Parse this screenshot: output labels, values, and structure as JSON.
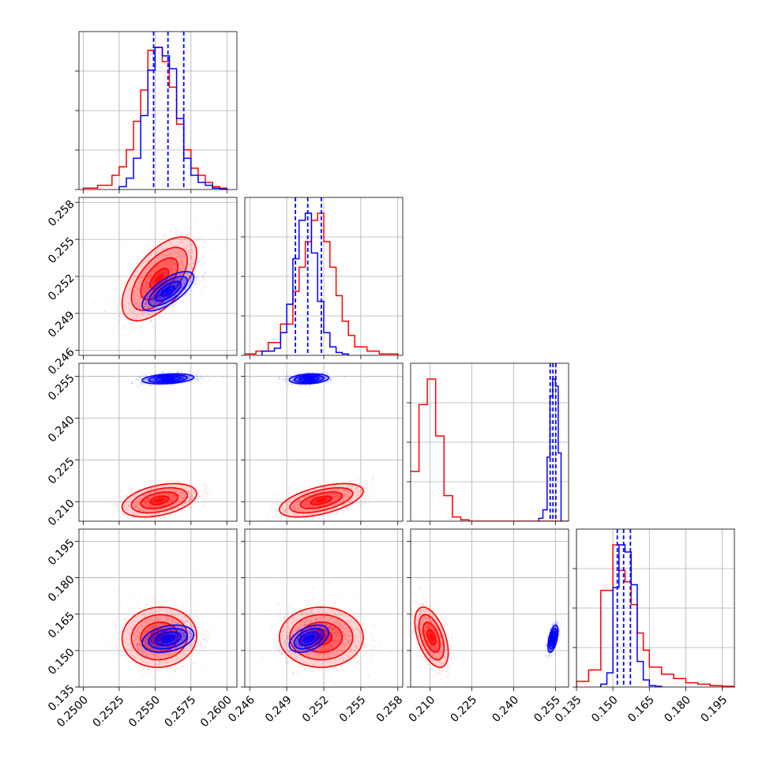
{
  "chart_data": {
    "type": "corner",
    "grid": true,
    "n_params": 4,
    "colors": {
      "red_sample": "#ff0000",
      "blue_sample": "#0000ff",
      "grid": "#b0b0b0"
    },
    "series": [
      {
        "color": "#ff0000",
        "mean": [
          0.2553,
          0.2518,
          0.2105,
          0.1555
        ],
        "std": [
          0.0013,
          0.0017,
          0.003,
          0.0062
        ],
        "corr": [
          [
            1,
            0.6,
            0.4,
            0.05
          ],
          [
            0.6,
            1,
            0.55,
            0.0
          ],
          [
            0.4,
            0.55,
            1,
            -0.5
          ],
          [
            0.05,
            0.0,
            -0.5,
            1
          ]
        ],
        "hist": [
          {
            "bins": [
              0.25,
              0.251,
              0.252,
              0.2525,
              0.253,
              0.2535,
              0.254,
              0.2545,
              0.255,
              0.2555,
              0.256,
              0.2565,
              0.257,
              0.2575,
              0.258,
              0.2585,
              0.259,
              0.2595,
              0.26
            ],
            "counts": [
              0.01,
              0.03,
              0.1,
              0.16,
              0.28,
              0.48,
              0.7,
              0.98,
              1.0,
              0.9,
              0.72,
              0.46,
              0.28,
              0.15,
              0.1,
              0.05,
              0.02,
              0.01
            ]
          },
          {
            "bins": [
              0.2455,
              0.2465,
              0.2475,
              0.2485,
              0.2495,
              0.25,
              0.2505,
              0.251,
              0.2515,
              0.252,
              0.2525,
              0.253,
              0.2535,
              0.254,
              0.2545,
              0.2555,
              0.2565,
              0.258
            ],
            "counts": [
              0.01,
              0.03,
              0.09,
              0.22,
              0.45,
              0.62,
              0.8,
              0.95,
              1.0,
              0.8,
              0.62,
              0.42,
              0.24,
              0.14,
              0.06,
              0.03,
              0.01
            ]
          },
          {
            "bins": [
              0.2025,
              0.206,
              0.209,
              0.212,
              0.215,
              0.218,
              0.221,
              0.224,
              0.25,
              0.252,
              0.254,
              0.256,
              0.258,
              0.26
            ],
            "counts": [
              0.35,
              0.82,
              1.0,
              0.6,
              0.18,
              0.03,
              0.01,
              0.0,
              0.0,
              0.0,
              0.0,
              0.0,
              0.0
            ]
          },
          {
            "bins": [
              0.135,
              0.14,
              0.145,
              0.15,
              0.1525,
              0.155,
              0.1575,
              0.16,
              0.1625,
              0.165,
              0.17,
              0.175,
              0.18,
              0.185,
              0.19,
              0.195,
              0.2
            ],
            "counts": [
              0.04,
              0.12,
              0.68,
              1.0,
              0.82,
              0.74,
              0.58,
              0.38,
              0.26,
              0.14,
              0.09,
              0.06,
              0.03,
              0.02,
              0.01,
              0.005
            ]
          }
        ]
      },
      {
        "color": "#0000ff",
        "mean": [
          0.2559,
          0.2508,
          0.2541,
          0.1549
        ],
        "std": [
          0.0009,
          0.0008,
          0.0009,
          0.0028
        ],
        "corr": [
          [
            1,
            0.7,
            0.3,
            0.3
          ],
          [
            0.7,
            1,
            0.2,
            0.45
          ],
          [
            0.3,
            0.2,
            1,
            0.55
          ],
          [
            0.3,
            0.45,
            0.55,
            1
          ]
        ],
        "quantile_lines": [
          [
            0.2549,
            0.2559,
            0.257
          ],
          [
            0.2497,
            0.2507,
            0.2518
          ],
          [
            0.2531,
            0.2541,
            0.2551
          ],
          [
            0.1518,
            0.1544,
            0.1572
          ]
        ],
        "hist": [
          {
            "bins": [
              0.2525,
              0.253,
              0.2535,
              0.254,
              0.2545,
              0.255,
              0.2555,
              0.256,
              0.2565,
              0.257,
              0.2575,
              0.258,
              0.2585,
              0.259,
              0.2595,
              0.26
            ],
            "counts": [
              0.02,
              0.08,
              0.22,
              0.52,
              0.84,
              1.0,
              0.94,
              0.85,
              0.5,
              0.22,
              0.1,
              0.05,
              0.03,
              0.01,
              0.005
            ]
          },
          {
            "bins": [
              0.247,
              0.248,
              0.2485,
              0.249,
              0.2495,
              0.25,
              0.2505,
              0.251,
              0.2515,
              0.252,
              0.2525,
              0.253,
              0.2535,
              0.254
            ],
            "counts": [
              0.03,
              0.05,
              0.16,
              0.36,
              0.68,
              0.95,
              1.0,
              0.72,
              0.38,
              0.16,
              0.06,
              0.02,
              0.01
            ]
          },
          {
            "bins": [
              0.249,
              0.2505,
              0.252,
              0.253,
              0.254,
              0.255,
              0.256,
              0.257
            ],
            "counts": [
              0.02,
              0.08,
              0.45,
              0.88,
              1.0,
              0.95,
              0.48
            ]
          },
          {
            "bins": [
              0.145,
              0.1475,
              0.15,
              0.1525,
              0.155,
              0.1575,
              0.16,
              0.1625,
              0.165,
              0.1675,
              0.17
            ],
            "counts": [
              0.02,
              0.1,
              0.7,
              1.0,
              0.95,
              0.72,
              0.18,
              0.05,
              0.01,
              0.005
            ]
          }
        ]
      }
    ],
    "axes": [
      {
        "range": [
          0.2497,
          0.2607
        ],
        "ticks": [
          0.25,
          0.2525,
          0.255,
          0.2575,
          0.26
        ],
        "tick_labels": [
          "0.2500",
          "0.2525",
          "0.2550",
          "0.2575",
          "0.2600"
        ]
      },
      {
        "range": [
          0.2456,
          0.2584
        ],
        "ticks": [
          0.246,
          0.249,
          0.252,
          0.255,
          0.258
        ],
        "tick_labels": [
          "0.246",
          "0.249",
          "0.252",
          "0.255",
          "0.258"
        ]
      },
      {
        "range": [
          0.203,
          0.2597
        ],
        "ticks": [
          0.21,
          0.225,
          0.24,
          0.255
        ],
        "tick_labels": [
          "0.210",
          "0.225",
          "0.240",
          "0.255"
        ]
      },
      {
        "range": [
          0.135,
          0.2
        ],
        "ticks": [
          0.135,
          0.15,
          0.165,
          0.18,
          0.195
        ],
        "tick_labels": [
          "0.135",
          "0.150",
          "0.165",
          "0.180",
          "0.195"
        ]
      }
    ]
  }
}
